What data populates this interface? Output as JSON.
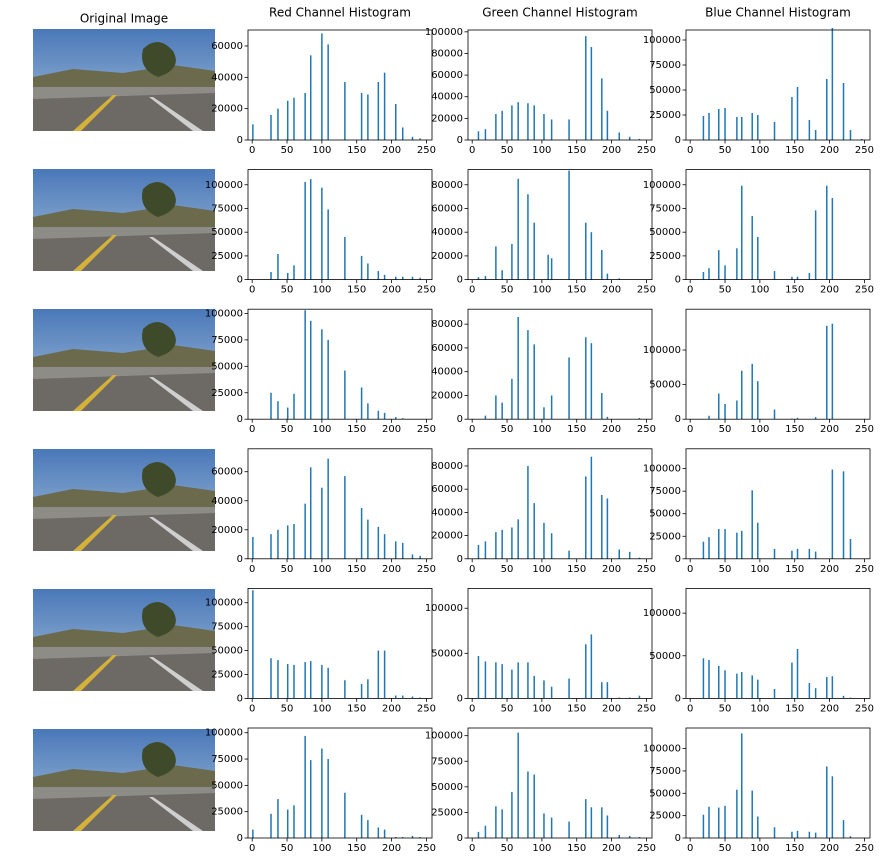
{
  "image_column": {
    "title": "Original Image"
  },
  "chart_data": [
    {
      "type": "bar",
      "title": "Red Channel Histogram",
      "x": [
        1,
        27,
        37,
        51,
        60,
        76,
        84,
        100,
        109,
        133,
        157,
        166,
        181,
        190,
        206,
        216,
        230,
        241
      ],
      "values": [
        10000,
        16000,
        20000,
        25000,
        27000,
        30000,
        54000,
        68000,
        61000,
        37000,
        30000,
        29000,
        37000,
        43000,
        23000,
        8000,
        2000,
        1000
      ],
      "color": "#1f77b4",
      "xlim": [
        -6,
        258
      ],
      "ylim": [
        0,
        70200
      ],
      "xticks": [
        0,
        50,
        100,
        150,
        200,
        250
      ],
      "yticks": [
        0,
        20000,
        40000,
        60000
      ]
    },
    {
      "type": "bar",
      "title": "Green Channel Histogram",
      "x": [
        9,
        19,
        34,
        43,
        57,
        66,
        80,
        89,
        103,
        114,
        139,
        163,
        171,
        186,
        194,
        211,
        226,
        240
      ],
      "values": [
        8000,
        10000,
        24000,
        27000,
        32000,
        35000,
        34000,
        32000,
        24000,
        19000,
        19000,
        96000,
        86000,
        57000,
        27000,
        7000,
        3000,
        1000
      ],
      "color": "#1f77b4",
      "xlim": [
        -6,
        258
      ],
      "ylim": [
        0,
        101700
      ],
      "xticks": [
        0,
        50,
        100,
        150,
        200,
        250
      ],
      "yticks": [
        0,
        20000,
        40000,
        60000,
        80000,
        100000
      ]
    },
    {
      "type": "bar",
      "title": "Blue Channel Histogram",
      "x": [
        19,
        27,
        41,
        50,
        67,
        74,
        89,
        97,
        121,
        146,
        154,
        171,
        180,
        196,
        204,
        220,
        230,
        246
      ],
      "values": [
        24000,
        27000,
        31000,
        32000,
        23000,
        23000,
        27000,
        25000,
        18000,
        43000,
        53000,
        20000,
        10000,
        61000,
        112000,
        57000,
        10000,
        1000
      ],
      "color": "#1f77b4",
      "xlim": [
        -6,
        258
      ],
      "ylim": [
        0,
        110000
      ],
      "xticks": [
        0,
        50,
        100,
        150,
        200,
        250
      ],
      "yticks": [
        0,
        25000,
        50000,
        75000,
        100000
      ]
    },
    {
      "type": "bar",
      "x": [
        27,
        37,
        51,
        60,
        76,
        84,
        100,
        109,
        133,
        157,
        166,
        181,
        190,
        206,
        216,
        230,
        241
      ],
      "values": [
        8000,
        27000,
        7000,
        15000,
        103000,
        106000,
        97000,
        74000,
        45000,
        25000,
        17000,
        9000,
        5000,
        3000,
        3000,
        3000,
        2000
      ],
      "color": "#1f77b4",
      "xlim": [
        -6,
        258
      ],
      "ylim": [
        0,
        116000
      ],
      "xticks": [
        0,
        50,
        100,
        150,
        200,
        250
      ],
      "yticks": [
        0,
        25000,
        50000,
        75000,
        100000
      ]
    },
    {
      "type": "bar",
      "x": [
        9,
        19,
        34,
        43,
        57,
        66,
        80,
        89,
        109,
        114,
        139,
        163,
        171,
        186,
        194,
        211
      ],
      "values": [
        2000,
        3000,
        28000,
        8000,
        30000,
        85000,
        72000,
        48000,
        21000,
        18000,
        92000,
        48000,
        40000,
        25000,
        5000,
        1000
      ],
      "color": "#1f77b4",
      "xlim": [
        -6,
        258
      ],
      "ylim": [
        0,
        92800
      ],
      "xticks": [
        0,
        50,
        100,
        150,
        200,
        250
      ],
      "yticks": [
        0,
        20000,
        40000,
        60000,
        80000
      ]
    },
    {
      "type": "bar",
      "x": [
        19,
        27,
        41,
        50,
        67,
        74,
        89,
        97,
        121,
        146,
        154,
        171,
        180,
        196,
        204
      ],
      "values": [
        8000,
        12000,
        31000,
        15000,
        33000,
        99000,
        67000,
        45000,
        9000,
        3000,
        3000,
        7000,
        73000,
        99000,
        86000
      ],
      "color": "#1f77b4",
      "xlim": [
        -6,
        258
      ],
      "ylim": [
        0,
        116000
      ],
      "xticks": [
        0,
        50,
        100,
        150,
        200,
        250
      ],
      "yticks": [
        0,
        25000,
        50000,
        75000,
        100000
      ]
    },
    {
      "type": "bar",
      "x": [
        27,
        37,
        51,
        60,
        76,
        84,
        100,
        109,
        133,
        157,
        166,
        181,
        190,
        206,
        216
      ],
      "values": [
        25000,
        17000,
        11000,
        24000,
        103000,
        93000,
        85000,
        75000,
        46000,
        30000,
        15000,
        8000,
        6000,
        2000,
        1000
      ],
      "color": "#1f77b4",
      "xlim": [
        -6,
        258
      ],
      "ylim": [
        0,
        104000
      ],
      "xticks": [
        0,
        50,
        100,
        150,
        200,
        250
      ],
      "yticks": [
        0,
        25000,
        50000,
        75000,
        100000
      ]
    },
    {
      "type": "bar",
      "x": [
        19,
        34,
        43,
        57,
        66,
        80,
        89,
        103,
        114,
        139,
        163,
        171,
        186,
        194,
        240
      ],
      "values": [
        3000,
        20000,
        14000,
        34000,
        86000,
        75000,
        63000,
        10000,
        20000,
        52000,
        69000,
        64000,
        22000,
        2000,
        1000
      ],
      "color": "#1f77b4",
      "xlim": [
        -6,
        258
      ],
      "ylim": [
        0,
        92600
      ],
      "xticks": [
        0,
        50,
        100,
        150,
        200,
        250
      ],
      "yticks": [
        0,
        20000,
        40000,
        60000,
        80000
      ]
    },
    {
      "type": "bar",
      "x": [
        27,
        41,
        50,
        67,
        74,
        89,
        97,
        121,
        146,
        154,
        180,
        196,
        204
      ],
      "values": [
        5000,
        37000,
        22000,
        27000,
        70000,
        80000,
        55000,
        14000,
        1000,
        2000,
        3000,
        135000,
        138000
      ],
      "color": "#1f77b4",
      "xlim": [
        -6,
        258
      ],
      "ylim": [
        0,
        159000
      ],
      "xticks": [
        0,
        50,
        100,
        150,
        200,
        250
      ],
      "yticks": [
        0,
        50000,
        100000
      ]
    },
    {
      "type": "bar",
      "x": [
        1,
        27,
        37,
        51,
        60,
        76,
        84,
        100,
        109,
        133,
        157,
        166,
        181,
        190,
        206,
        216,
        230,
        241
      ],
      "values": [
        15000,
        17000,
        20000,
        23000,
        24000,
        38000,
        63000,
        49000,
        69000,
        57000,
        35000,
        27000,
        22000,
        17000,
        12000,
        11000,
        3000,
        2000
      ],
      "color": "#1f77b4",
      "xlim": [
        -6,
        258
      ],
      "ylim": [
        0,
        75800
      ],
      "xticks": [
        0,
        50,
        100,
        150,
        200,
        250
      ],
      "yticks": [
        0,
        20000,
        40000,
        60000
      ]
    },
    {
      "type": "bar",
      "x": [
        9,
        19,
        34,
        43,
        57,
        66,
        80,
        89,
        103,
        114,
        139,
        163,
        171,
        186,
        194,
        211,
        226,
        240
      ],
      "values": [
        12000,
        15000,
        23000,
        25000,
        27000,
        34000,
        80000,
        48000,
        31000,
        22000,
        7000,
        71000,
        88000,
        55000,
        52000,
        8000,
        6000,
        1000
      ],
      "color": "#1f77b4",
      "xlim": [
        -6,
        258
      ],
      "ylim": [
        0,
        94800
      ],
      "xticks": [
        0,
        50,
        100,
        150,
        200,
        250
      ],
      "yticks": [
        0,
        20000,
        40000,
        60000,
        80000
      ]
    },
    {
      "type": "bar",
      "x": [
        19,
        27,
        41,
        50,
        67,
        74,
        89,
        97,
        121,
        146,
        154,
        171,
        180,
        204,
        220,
        230
      ],
      "values": [
        19000,
        24000,
        33000,
        33000,
        29000,
        31000,
        76000,
        40000,
        11000,
        9000,
        11000,
        11000,
        8000,
        99000,
        97000,
        22000
      ],
      "color": "#1f77b4",
      "xlim": [
        -6,
        258
      ],
      "ylim": [
        0,
        122000
      ],
      "xticks": [
        0,
        50,
        100,
        150,
        200,
        250
      ],
      "yticks": [
        0,
        25000,
        50000,
        75000,
        100000
      ]
    },
    {
      "type": "bar",
      "x": [
        1,
        27,
        37,
        51,
        60,
        76,
        84,
        100,
        109,
        133,
        157,
        166,
        181,
        190,
        206,
        216,
        230,
        241
      ],
      "values": [
        113000,
        42000,
        40000,
        36000,
        35000,
        38000,
        39000,
        35000,
        32000,
        19000,
        15000,
        20000,
        50000,
        50000,
        3000,
        3000,
        2000,
        1000
      ],
      "color": "#1f77b4",
      "xlim": [
        -6,
        258
      ],
      "ylim": [
        0,
        115000
      ],
      "xticks": [
        0,
        50,
        100,
        150,
        200,
        250
      ],
      "yticks": [
        0,
        25000,
        50000,
        75000,
        100000
      ]
    },
    {
      "type": "bar",
      "x": [
        9,
        19,
        34,
        43,
        57,
        66,
        80,
        89,
        103,
        114,
        139,
        163,
        171,
        186,
        194,
        211,
        226,
        240
      ],
      "values": [
        47000,
        41000,
        40000,
        38000,
        32000,
        40000,
        40000,
        25000,
        20000,
        13000,
        22000,
        60000,
        71000,
        18000,
        18000,
        1000,
        1000,
        3000
      ],
      "color": "#1f77b4",
      "xlim": [
        -6,
        258
      ],
      "ylim": [
        0,
        122000
      ],
      "xticks": [
        0,
        50,
        100,
        150,
        200,
        250
      ],
      "yticks": [
        0,
        50000,
        100000
      ]
    },
    {
      "type": "bar",
      "x": [
        19,
        27,
        41,
        50,
        67,
        74,
        89,
        97,
        121,
        146,
        154,
        171,
        180,
        196,
        204,
        220,
        230
      ],
      "values": [
        47000,
        45000,
        38000,
        33000,
        29000,
        31000,
        27000,
        22000,
        11000,
        42000,
        58000,
        18000,
        12000,
        25000,
        26000,
        3000,
        1000
      ],
      "color": "#1f77b4",
      "xlim": [
        -6,
        258
      ],
      "ylim": [
        0,
        129000
      ],
      "xticks": [
        0,
        50,
        100,
        150,
        200,
        250
      ],
      "yticks": [
        0,
        50000,
        100000
      ]
    },
    {
      "type": "bar",
      "x": [
        1,
        27,
        37,
        51,
        60,
        76,
        84,
        100,
        109,
        133,
        157,
        166,
        181,
        190,
        206,
        216,
        230,
        241
      ],
      "values": [
        8000,
        23000,
        37000,
        27000,
        31000,
        97000,
        74000,
        85000,
        75000,
        43000,
        22000,
        17000,
        10000,
        8000,
        1000,
        1000,
        2000,
        1000
      ],
      "color": "#1f77b4",
      "xlim": [
        -6,
        258
      ],
      "ylim": [
        0,
        104500
      ],
      "xticks": [
        0,
        50,
        100,
        150,
        200,
        250
      ],
      "yticks": [
        0,
        25000,
        50000,
        75000,
        100000
      ]
    },
    {
      "type": "bar",
      "x": [
        9,
        19,
        34,
        43,
        57,
        66,
        80,
        89,
        103,
        114,
        139,
        163,
        171,
        186,
        194,
        211,
        226,
        240
      ],
      "values": [
        6000,
        12000,
        31000,
        28000,
        45000,
        103000,
        65000,
        62000,
        24000,
        20000,
        16000,
        38000,
        30000,
        30000,
        22000,
        3000,
        2000,
        1000
      ],
      "color": "#1f77b4",
      "xlim": [
        -6,
        258
      ],
      "ylim": [
        0,
        107500
      ],
      "xticks": [
        0,
        50,
        100,
        150,
        200,
        250
      ],
      "yticks": [
        0,
        25000,
        50000,
        75000,
        100000
      ]
    },
    {
      "type": "bar",
      "x": [
        19,
        27,
        41,
        50,
        67,
        74,
        89,
        97,
        121,
        146,
        154,
        171,
        180,
        196,
        204,
        220,
        230
      ],
      "values": [
        26000,
        35000,
        34000,
        36000,
        54000,
        117000,
        53000,
        24000,
        12000,
        7000,
        8000,
        7000,
        6000,
        80000,
        69000,
        20000,
        2000
      ],
      "color": "#1f77b4",
      "xlim": [
        -6,
        258
      ],
      "ylim": [
        0,
        123000
      ],
      "xticks": [
        0,
        50,
        100,
        150,
        200,
        250
      ],
      "yticks": [
        0,
        25000,
        50000,
        75000,
        100000
      ]
    }
  ]
}
